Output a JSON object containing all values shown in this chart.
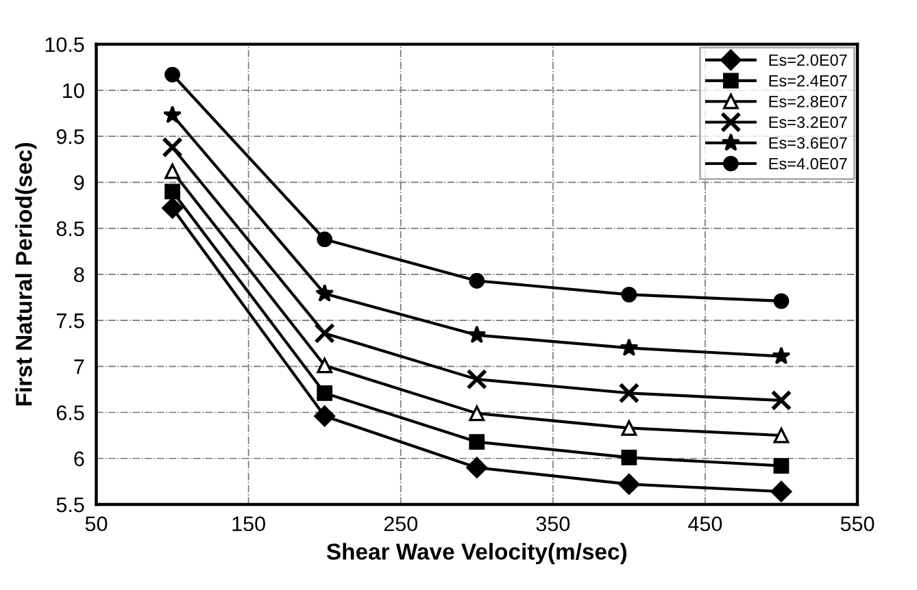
{
  "chart_data": {
    "type": "line",
    "xlabel": "Shear Wave Velocity(m/sec)",
    "ylabel": "First Natural Period(sec)",
    "x": [
      100,
      200,
      300,
      400,
      500
    ],
    "series": [
      {
        "name": "Es=2.0E07",
        "color": "#000000",
        "marker": "diamond",
        "values": [
          8.72,
          6.46,
          5.9,
          5.72,
          5.64
        ]
      },
      {
        "name": "Es=2.4E07",
        "color": "#000000",
        "marker": "square",
        "values": [
          8.9,
          6.71,
          6.18,
          6.01,
          5.92
        ]
      },
      {
        "name": "Es=2.8E07",
        "color": "#000000",
        "marker": "triangle",
        "values": [
          9.12,
          7.01,
          6.49,
          6.33,
          6.25
        ]
      },
      {
        "name": "Es=3.2E07",
        "color": "#000000",
        "marker": "cross",
        "values": [
          9.38,
          7.36,
          6.86,
          6.71,
          6.63
        ]
      },
      {
        "name": "Es=3.6E07",
        "color": "#000000",
        "marker": "star",
        "values": [
          9.73,
          7.79,
          7.34,
          7.2,
          7.11
        ]
      },
      {
        "name": "Es=4.0E07",
        "color": "#000000",
        "marker": "circle",
        "values": [
          10.17,
          8.38,
          7.93,
          7.78,
          7.71
        ]
      }
    ],
    "xlim": [
      50,
      550
    ],
    "xticks": [
      50,
      150,
      250,
      350,
      450,
      550
    ],
    "ylim": [
      5.5,
      10.5
    ],
    "yticks": [
      5.5,
      6,
      6.5,
      7,
      7.5,
      8,
      8.5,
      9,
      9.5,
      10,
      10.5
    ],
    "grid": true,
    "legend": "top right",
    "line_style": "solid"
  }
}
